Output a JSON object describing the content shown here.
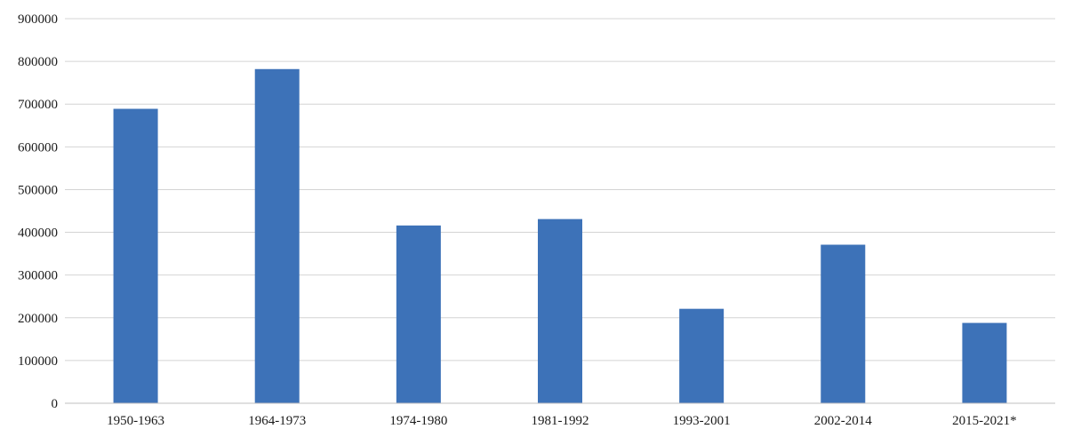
{
  "chart_data": {
    "type": "bar",
    "title": "",
    "xlabel": "",
    "ylabel": "",
    "categories": [
      "1950-1963",
      "1964-1973",
      "1974-1980",
      "1981-1992",
      "1993-2001",
      "2002-2014",
      "2015-2021*"
    ],
    "values": [
      689000,
      782000,
      416000,
      431000,
      221000,
      371000,
      188000
    ],
    "ylim": [
      0,
      900000
    ],
    "yticks": [
      "0",
      "100000",
      "200000",
      "300000",
      "400000",
      "500000",
      "600000",
      "700000",
      "800000",
      "900000"
    ],
    "grid": true,
    "legend": "none",
    "bar_color": "#3d72b8"
  }
}
